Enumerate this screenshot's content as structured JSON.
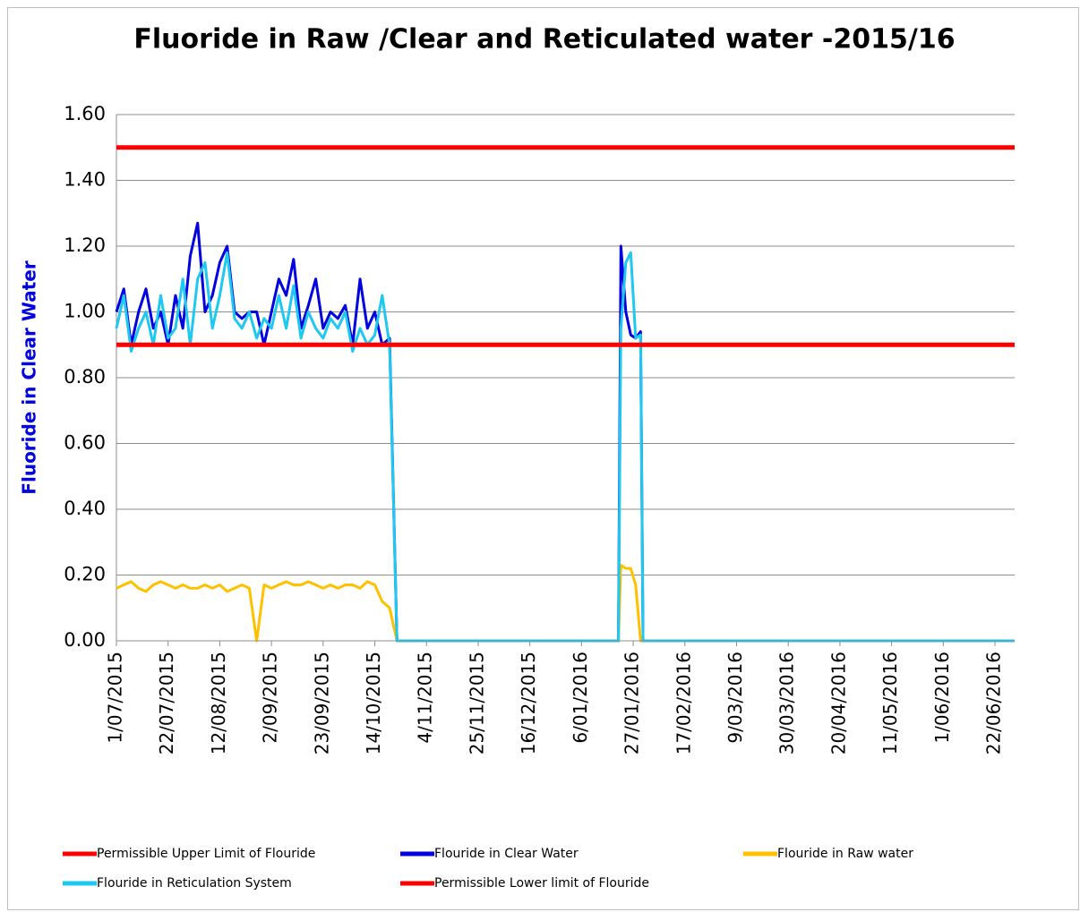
{
  "chart_data": {
    "type": "line",
    "title": "Fluoride in Raw /Clear and Reticulated water  -2015/16",
    "y_label": "Fluoride  in Clear Water",
    "x": [
      "1/07/2015",
      "4/07/2015",
      "7/07/2015",
      "10/07/2015",
      "13/07/2015",
      "16/07/2015",
      "19/07/2015",
      "22/07/2015",
      "25/07/2015",
      "28/07/2015",
      "31/07/2015",
      "3/08/2015",
      "6/08/2015",
      "9/08/2015",
      "12/08/2015",
      "15/08/2015",
      "18/08/2015",
      "21/08/2015",
      "24/08/2015",
      "27/08/2015",
      "30/08/2015",
      "2/09/2015",
      "5/09/2015",
      "8/09/2015",
      "11/09/2015",
      "14/09/2015",
      "17/09/2015",
      "20/09/2015",
      "23/09/2015",
      "26/09/2015",
      "29/09/2015",
      "2/10/2015",
      "5/10/2015",
      "8/10/2015",
      "11/10/2015",
      "14/10/2015",
      "17/10/2015",
      "20/10/2015",
      "23/10/2015",
      "21/01/2016",
      "22/01/2016",
      "24/01/2016",
      "26/01/2016",
      "28/01/2016",
      "30/01/2016",
      "31/01/2016",
      "30/06/2016"
    ],
    "series": [
      {
        "name": "Permissible Upper Limit of Flouride",
        "color": "#ff0000",
        "level": 1.5
      },
      {
        "name": "Flouride in Clear Water",
        "color": "#0000e0",
        "values": [
          1.0,
          1.07,
          0.9,
          1.0,
          1.07,
          0.95,
          1.0,
          0.9,
          1.05,
          0.95,
          1.17,
          1.27,
          1.0,
          1.05,
          1.15,
          1.2,
          1.0,
          0.98,
          1.0,
          1.0,
          0.9,
          1.0,
          1.1,
          1.05,
          1.16,
          0.95,
          1.02,
          1.1,
          0.95,
          1.0,
          0.98,
          1.02,
          0.9,
          1.1,
          0.95,
          1.0,
          0.9,
          0.92,
          0,
          0,
          1.2,
          1.0,
          0.93,
          0.92,
          0.94,
          0,
          0
        ]
      },
      {
        "name": "Flouride in Raw water",
        "color": "#ffc000",
        "values": [
          0.16,
          0.17,
          0.18,
          0.16,
          0.15,
          0.17,
          0.18,
          0.17,
          0.16,
          0.17,
          0.16,
          0.16,
          0.17,
          0.16,
          0.17,
          0.15,
          0.16,
          0.17,
          0.16,
          0,
          0.17,
          0.16,
          0.17,
          0.18,
          0.17,
          0.17,
          0.18,
          0.17,
          0.16,
          0.17,
          0.16,
          0.17,
          0.17,
          0.16,
          0.18,
          0.17,
          0.12,
          0.1,
          0,
          0,
          0.23,
          0.22,
          0.22,
          0.17,
          0,
          0,
          0
        ]
      },
      {
        "name": "Flouride in Reticulation System",
        "color": "#1ec8f0",
        "values": [
          0.95,
          1.05,
          0.88,
          0.95,
          1.0,
          0.9,
          1.05,
          0.92,
          0.95,
          1.1,
          0.9,
          1.1,
          1.15,
          0.95,
          1.05,
          1.18,
          0.98,
          0.95,
          1.0,
          0.92,
          0.98,
          0.95,
          1.05,
          0.95,
          1.08,
          0.92,
          1.0,
          0.95,
          0.92,
          0.98,
          0.95,
          1.0,
          0.88,
          0.95,
          0.9,
          0.93,
          1.05,
          0.9,
          0,
          0,
          0.95,
          1.15,
          1.18,
          0.92,
          0.93,
          0,
          0
        ]
      },
      {
        "name": "Permissible Lower limit of Flouride",
        "color": "#ff0000",
        "level": 0.9
      }
    ],
    "xlim": [
      "1/07/2015",
      "30/06/2016"
    ],
    "xticks": [
      "1/07/2015",
      "22/07/2015",
      "12/08/2015",
      "2/09/2015",
      "23/09/2015",
      "14/10/2015",
      "4/11/2015",
      "25/11/2015",
      "16/12/2015",
      "6/01/2016",
      "27/01/2016",
      "17/02/2016",
      "9/03/2016",
      "30/03/2016",
      "20/04/2016",
      "11/05/2016",
      "1/06/2016",
      "22/06/2016"
    ],
    "ylim": [
      0,
      1.6
    ],
    "yticks": [
      {
        "value": 0,
        "label": "0.00"
      },
      {
        "value": 0.2,
        "label": "0.20"
      },
      {
        "value": 0.4,
        "label": "0.40"
      },
      {
        "value": 0.6,
        "label": "0.60"
      },
      {
        "value": 0.8,
        "label": "0.80"
      },
      {
        "value": 1.0,
        "label": "1.00"
      },
      {
        "value": 1.2,
        "label": "1.20"
      },
      {
        "value": 1.4,
        "label": "1.40"
      },
      {
        "value": 1.6,
        "label": "1.60"
      }
    ],
    "grid": true,
    "legend": "bottom"
  }
}
